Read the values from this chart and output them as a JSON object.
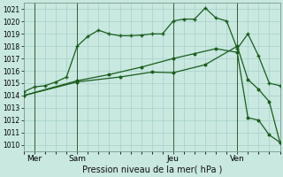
{
  "background_color": "#c8e8e0",
  "grid_color": "#a8d0c8",
  "line_color": "#1a5c1a",
  "xlabel": "Pression niveau de la mer( hPa )",
  "ylim": [
    1009.5,
    1021.5
  ],
  "xlim": [
    0,
    24
  ],
  "day_labels": [
    "Mer",
    "Sam",
    "Jeu",
    "Ven"
  ],
  "day_positions": [
    1,
    5,
    14,
    20
  ],
  "vline_positions": [
    1,
    5,
    14,
    20
  ],
  "s1_x": [
    0,
    1,
    2,
    3,
    4,
    5,
    6,
    7,
    8,
    9,
    10,
    11,
    12,
    13,
    14,
    15,
    16,
    17,
    18,
    19,
    20,
    21,
    22,
    23,
    24
  ],
  "s1_y": [
    1014.3,
    1014.7,
    1014.8,
    1015.1,
    1015.5,
    1018.0,
    1018.8,
    1019.3,
    1019.0,
    1018.85,
    1018.85,
    1018.9,
    1019.0,
    1019.0,
    1020.05,
    1020.2,
    1020.2,
    1021.1,
    1020.3,
    1020.05,
    1017.8,
    1019.0,
    1017.2,
    1015.0,
    1014.8
  ],
  "s2_x": [
    0,
    5,
    8,
    11,
    14,
    16,
    18,
    20,
    21,
    22,
    23,
    24
  ],
  "s2_y": [
    1014.0,
    1015.2,
    1015.7,
    1016.3,
    1017.0,
    1017.4,
    1017.8,
    1017.5,
    1012.2,
    1012.0,
    1010.8,
    1010.2
  ],
  "s3_x": [
    0,
    5,
    9,
    12,
    14,
    17,
    20,
    21,
    22,
    23,
    24
  ],
  "s3_y": [
    1014.0,
    1015.1,
    1015.5,
    1015.9,
    1015.85,
    1016.5,
    1018.0,
    1015.3,
    1014.5,
    1013.5,
    1010.2
  ]
}
